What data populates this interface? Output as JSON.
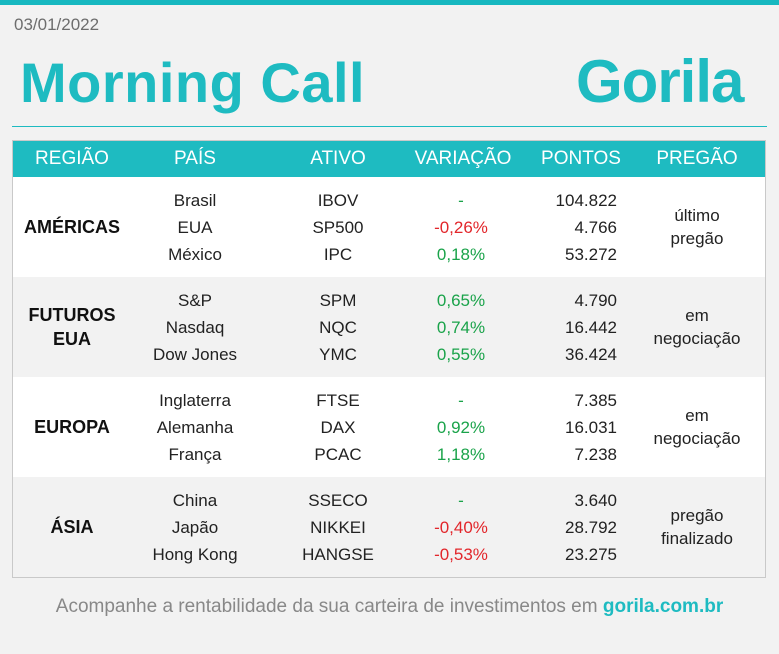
{
  "date": "03/01/2022",
  "title": "Morning Call",
  "logo": "Gorila",
  "headers": {
    "regiao": "REGIÃO",
    "pais": "PAÍS",
    "ativo": "ATIVO",
    "variacao": "VARIAÇÃO",
    "pontos": "PONTOS",
    "pregao": "PREGÃO"
  },
  "groups": [
    {
      "region": "AMÉRICAS",
      "pregao": "último\npregão",
      "rows": [
        {
          "pais": "Brasil",
          "ativo": "IBOV",
          "variacao": "-",
          "pontos": "104.822",
          "dir": "neu"
        },
        {
          "pais": "EUA",
          "ativo": "SP500",
          "variacao": "-0,26%",
          "pontos": "4.766",
          "dir": "neg"
        },
        {
          "pais": "México",
          "ativo": "IPC",
          "variacao": "0,18%",
          "pontos": "53.272",
          "dir": "pos"
        }
      ]
    },
    {
      "region": "FUTUROS\nEUA",
      "pregao": "em\nnegociação",
      "rows": [
        {
          "pais": "S&P",
          "ativo": "SPM",
          "variacao": "0,65%",
          "pontos": "4.790",
          "dir": "pos"
        },
        {
          "pais": "Nasdaq",
          "ativo": "NQC",
          "variacao": "0,74%",
          "pontos": "16.442",
          "dir": "pos"
        },
        {
          "pais": "Dow Jones",
          "ativo": "YMC",
          "variacao": "0,55%",
          "pontos": "36.424",
          "dir": "pos"
        }
      ]
    },
    {
      "region": "EUROPA",
      "pregao": "em\nnegociação",
      "rows": [
        {
          "pais": "Inglaterra",
          "ativo": "FTSE",
          "variacao": "-",
          "pontos": "7.385",
          "dir": "neu"
        },
        {
          "pais": "Alemanha",
          "ativo": "DAX",
          "variacao": "0,92%",
          "pontos": "16.031",
          "dir": "pos"
        },
        {
          "pais": "França",
          "ativo": "PCAC",
          "variacao": "1,18%",
          "pontos": "7.238",
          "dir": "pos"
        }
      ]
    },
    {
      "region": "ÁSIA",
      "pregao": "pregão\nfinalizado",
      "rows": [
        {
          "pais": "China",
          "ativo": "SSECO",
          "variacao": "-",
          "pontos": "3.640",
          "dir": "neu"
        },
        {
          "pais": "Japão",
          "ativo": "NIKKEI",
          "variacao": "-0,40%",
          "pontos": "28.792",
          "dir": "neg"
        },
        {
          "pais": "Hong Kong",
          "ativo": "HANGSE",
          "variacao": "-0,53%",
          "pontos": "23.275",
          "dir": "neg"
        }
      ]
    }
  ],
  "footer": {
    "text": "Acompanhe a rentabilidade da sua carteira de investimentos em ",
    "link": "gorila.com.br"
  },
  "colors": {
    "accent": "#1ebbc1",
    "positive": "#1aa34a",
    "negative": "#e2262b"
  }
}
